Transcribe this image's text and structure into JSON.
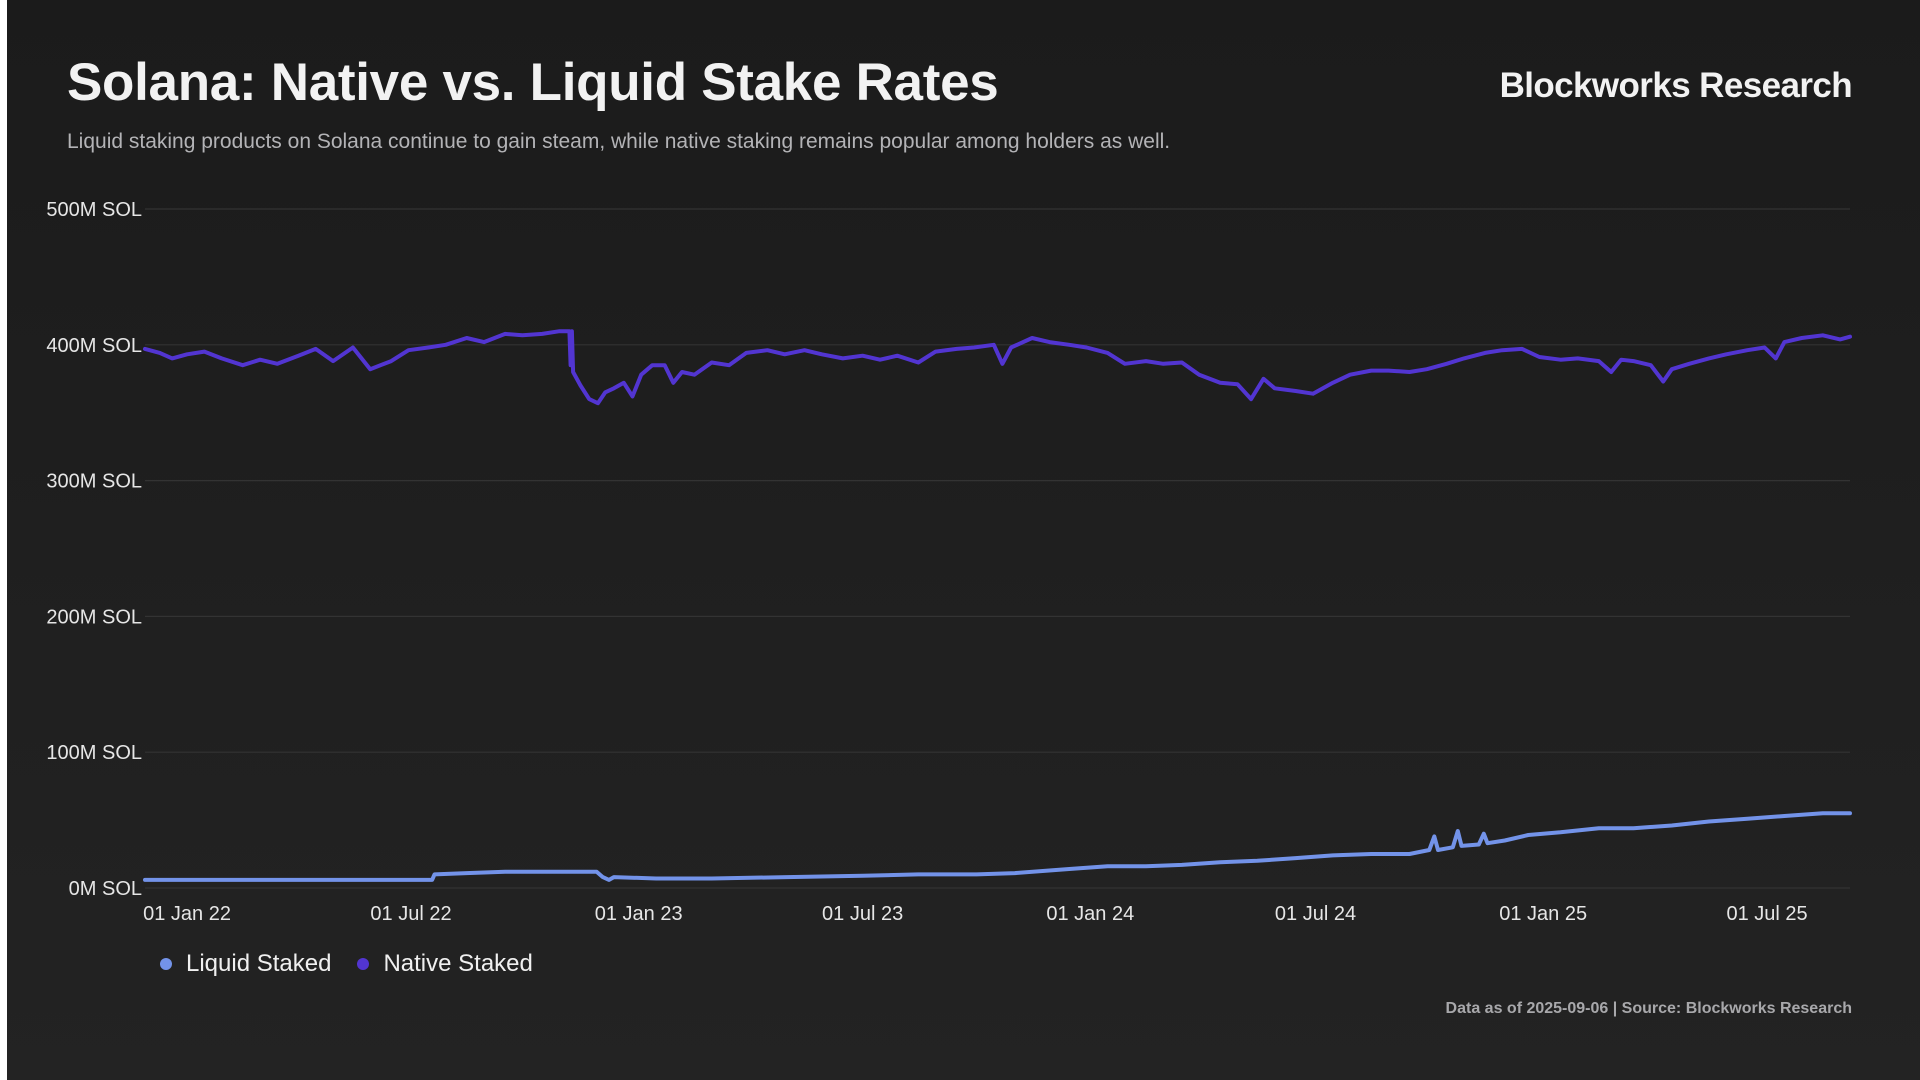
{
  "header": {
    "title": "Solana: Native vs. Liquid Stake Rates",
    "subtitle": "Liquid staking products on Solana continue to gain steam, while native staking remains popular among holders as well.",
    "brand": "Blockworks Research"
  },
  "footer": {
    "note": "Data as of 2025-09-06 | Source: Blockworks Research"
  },
  "colors": {
    "background": "#1e1e1e",
    "grid": "#333333",
    "liquid": "#7393e9",
    "native": "#5235d1"
  },
  "chart_data": {
    "type": "line",
    "title": "Solana: Native vs. Liquid Stake Rates",
    "xlabel": "",
    "ylabel": "",
    "ylim": [
      0,
      500
    ],
    "y_unit": "M SOL",
    "yticks": [
      0,
      100,
      200,
      300,
      400,
      500
    ],
    "ytick_labels": [
      "0M SOL",
      "100M SOL",
      "200M SOL",
      "300M SOL",
      "400M SOL",
      "500M SOL"
    ],
    "xlim": [
      "2021-11-28",
      "2025-09-06"
    ],
    "xticks": [
      "2022-01-01",
      "2022-07-01",
      "2023-01-01",
      "2023-07-01",
      "2024-01-01",
      "2024-07-01",
      "2025-01-01",
      "2025-07-01"
    ],
    "xtick_labels": [
      "01 Jan 22",
      "01 Jul 22",
      "01 Jan 23",
      "01 Jul 23",
      "01 Jan 24",
      "01 Jul 24",
      "01 Jan 25",
      "01 Jul 25"
    ],
    "grid": true,
    "legend": "bottom-left",
    "series": [
      {
        "name": "Liquid Staked",
        "color": "#7393e9",
        "points": [
          [
            "2021-11-28",
            6
          ],
          [
            "2022-02-01",
            6
          ],
          [
            "2022-04-01",
            6
          ],
          [
            "2022-06-01",
            6
          ],
          [
            "2022-07-18",
            6
          ],
          [
            "2022-07-20",
            10
          ],
          [
            "2022-08-15",
            11
          ],
          [
            "2022-09-15",
            12
          ],
          [
            "2022-10-15",
            12
          ],
          [
            "2022-11-10",
            12
          ],
          [
            "2022-11-28",
            12
          ],
          [
            "2022-12-03",
            8
          ],
          [
            "2022-12-08",
            6
          ],
          [
            "2022-12-12",
            8
          ],
          [
            "2023-01-15",
            7
          ],
          [
            "2023-03-01",
            7
          ],
          [
            "2023-05-01",
            8
          ],
          [
            "2023-07-01",
            9
          ],
          [
            "2023-08-15",
            10
          ],
          [
            "2023-10-01",
            10
          ],
          [
            "2023-11-01",
            11
          ],
          [
            "2023-12-15",
            14
          ],
          [
            "2024-01-15",
            16
          ],
          [
            "2024-02-15",
            16
          ],
          [
            "2024-03-15",
            17
          ],
          [
            "2024-04-15",
            19
          ],
          [
            "2024-05-15",
            20
          ],
          [
            "2024-06-15",
            22
          ],
          [
            "2024-07-15",
            24
          ],
          [
            "2024-08-15",
            25
          ],
          [
            "2024-09-15",
            25
          ],
          [
            "2024-10-01",
            28
          ],
          [
            "2024-10-05",
            38
          ],
          [
            "2024-10-08",
            28
          ],
          [
            "2024-10-20",
            30
          ],
          [
            "2024-10-24",
            42
          ],
          [
            "2024-10-27",
            31
          ],
          [
            "2024-11-10",
            32
          ],
          [
            "2024-11-14",
            40
          ],
          [
            "2024-11-17",
            33
          ],
          [
            "2024-12-01",
            35
          ],
          [
            "2024-12-20",
            39
          ],
          [
            "2025-01-15",
            41
          ],
          [
            "2025-02-15",
            44
          ],
          [
            "2025-03-15",
            44
          ],
          [
            "2025-04-15",
            46
          ],
          [
            "2025-05-15",
            49
          ],
          [
            "2025-06-15",
            51
          ],
          [
            "2025-07-15",
            53
          ],
          [
            "2025-08-15",
            55
          ],
          [
            "2025-09-06",
            55
          ]
        ]
      },
      {
        "name": "Native Staked",
        "color": "#5235d1",
        "points": [
          [
            "2021-11-28",
            397
          ],
          [
            "2021-12-10",
            394
          ],
          [
            "2021-12-20",
            390
          ],
          [
            "2022-01-01",
            393
          ],
          [
            "2022-01-15",
            395
          ],
          [
            "2022-01-29",
            390
          ],
          [
            "2022-02-15",
            385
          ],
          [
            "2022-03-01",
            389
          ],
          [
            "2022-03-15",
            386
          ],
          [
            "2022-04-01",
            392
          ],
          [
            "2022-04-15",
            397
          ],
          [
            "2022-04-29",
            388
          ],
          [
            "2022-05-15",
            398
          ],
          [
            "2022-05-29",
            382
          ],
          [
            "2022-06-15",
            388
          ],
          [
            "2022-06-29",
            396
          ],
          [
            "2022-07-15",
            398
          ],
          [
            "2022-07-29",
            400
          ],
          [
            "2022-08-15",
            405
          ],
          [
            "2022-08-29",
            402
          ],
          [
            "2022-09-15",
            408
          ],
          [
            "2022-09-29",
            407
          ],
          [
            "2022-10-15",
            408
          ],
          [
            "2022-10-29",
            410
          ],
          [
            "2022-11-06",
            410
          ],
          [
            "2022-11-07",
            385
          ],
          [
            "2022-11-08",
            410
          ],
          [
            "2022-11-09",
            380
          ],
          [
            "2022-11-15",
            370
          ],
          [
            "2022-11-22",
            360
          ],
          [
            "2022-11-29",
            357
          ],
          [
            "2022-12-05",
            365
          ],
          [
            "2022-12-12",
            368
          ],
          [
            "2022-12-20",
            372
          ],
          [
            "2022-12-27",
            362
          ],
          [
            "2023-01-03",
            378
          ],
          [
            "2023-01-12",
            385
          ],
          [
            "2023-01-22",
            385
          ],
          [
            "2023-01-29",
            372
          ],
          [
            "2023-02-05",
            380
          ],
          [
            "2023-02-15",
            378
          ],
          [
            "2023-03-01",
            387
          ],
          [
            "2023-03-15",
            385
          ],
          [
            "2023-03-29",
            394
          ],
          [
            "2023-04-15",
            396
          ],
          [
            "2023-04-29",
            393
          ],
          [
            "2023-05-15",
            396
          ],
          [
            "2023-05-29",
            393
          ],
          [
            "2023-06-15",
            390
          ],
          [
            "2023-07-01",
            392
          ],
          [
            "2023-07-15",
            389
          ],
          [
            "2023-07-29",
            392
          ],
          [
            "2023-08-15",
            387
          ],
          [
            "2023-08-29",
            395
          ],
          [
            "2023-09-15",
            397
          ],
          [
            "2023-09-29",
            398
          ],
          [
            "2023-10-15",
            400
          ],
          [
            "2023-10-22",
            386
          ],
          [
            "2023-10-29",
            398
          ],
          [
            "2023-11-15",
            405
          ],
          [
            "2023-11-29",
            402
          ],
          [
            "2023-12-15",
            400
          ],
          [
            "2023-12-29",
            398
          ],
          [
            "2024-01-15",
            394
          ],
          [
            "2024-01-29",
            386
          ],
          [
            "2024-02-15",
            388
          ],
          [
            "2024-02-29",
            386
          ],
          [
            "2024-03-15",
            387
          ],
          [
            "2024-03-29",
            378
          ],
          [
            "2024-04-15",
            372
          ],
          [
            "2024-04-29",
            371
          ],
          [
            "2024-05-10",
            360
          ],
          [
            "2024-05-20",
            375
          ],
          [
            "2024-05-29",
            368
          ],
          [
            "2024-06-15",
            366
          ],
          [
            "2024-06-29",
            364
          ],
          [
            "2024-07-15",
            372
          ],
          [
            "2024-07-29",
            378
          ],
          [
            "2024-08-15",
            381
          ],
          [
            "2024-08-29",
            381
          ],
          [
            "2024-09-15",
            380
          ],
          [
            "2024-09-29",
            382
          ],
          [
            "2024-10-15",
            386
          ],
          [
            "2024-10-29",
            390
          ],
          [
            "2024-11-15",
            394
          ],
          [
            "2024-11-29",
            396
          ],
          [
            "2024-12-15",
            397
          ],
          [
            "2024-12-29",
            391
          ],
          [
            "2025-01-15",
            389
          ],
          [
            "2025-01-29",
            390
          ],
          [
            "2025-02-15",
            388
          ],
          [
            "2025-02-25",
            380
          ],
          [
            "2025-03-05",
            389
          ],
          [
            "2025-03-15",
            388
          ],
          [
            "2025-03-29",
            385
          ],
          [
            "2025-04-08",
            373
          ],
          [
            "2025-04-15",
            382
          ],
          [
            "2025-04-29",
            386
          ],
          [
            "2025-05-15",
            390
          ],
          [
            "2025-05-29",
            393
          ],
          [
            "2025-06-15",
            396
          ],
          [
            "2025-06-29",
            398
          ],
          [
            "2025-07-08",
            390
          ],
          [
            "2025-07-15",
            402
          ],
          [
            "2025-07-29",
            405
          ],
          [
            "2025-08-15",
            407
          ],
          [
            "2025-08-29",
            404
          ],
          [
            "2025-09-06",
            406
          ]
        ]
      }
    ]
  }
}
